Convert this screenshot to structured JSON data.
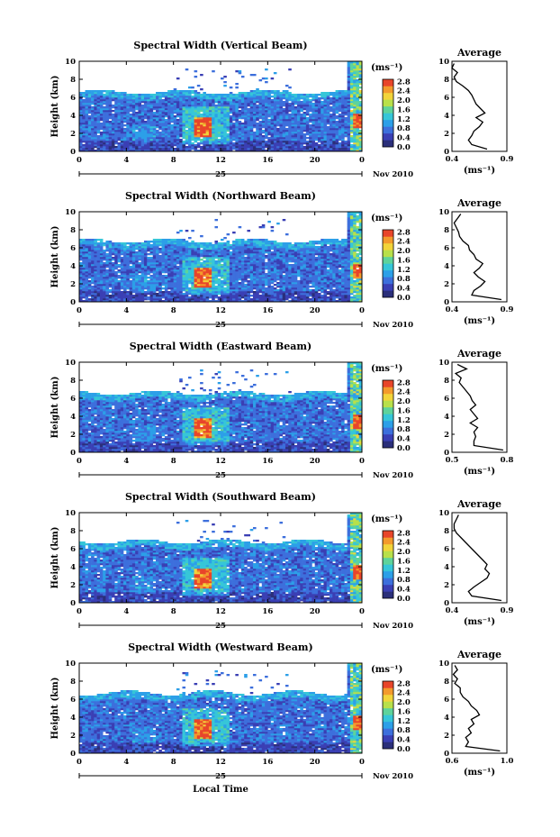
{
  "figure": {
    "xlabel": "Local Time",
    "day_label": "25",
    "month_label": "Nov 2010",
    "unit_label": "(ms⁻¹)",
    "avg_title": "Average",
    "avg_xlabel": "(ms⁻¹)"
  },
  "colorbar": {
    "ticks": [
      "0.0",
      "0.4",
      "0.8",
      "1.2",
      "1.6",
      "2.0",
      "2.4",
      "2.8"
    ],
    "colors": [
      "#2b2f7a",
      "#3a3fb4",
      "#3d6fdc",
      "#2c9fe8",
      "#36c6d8",
      "#5ed39b",
      "#b8e04a",
      "#f2d43a",
      "#f39a2c",
      "#e8452a"
    ]
  },
  "chart_data": [
    {
      "type": "heatmap",
      "title": "Spectral Width (Vertical Beam)",
      "xlabel": "Local Time",
      "ylabel": "Height (km)",
      "xlim": [
        0,
        24
      ],
      "ylim": [
        0,
        10
      ],
      "xticks": [
        "0",
        "4",
        "8",
        "12",
        "16",
        "20",
        "0"
      ],
      "yticks": [
        "0",
        "2",
        "4",
        "6",
        "8",
        "10"
      ],
      "colorbar_label": "(ms⁻¹)",
      "zlim": [
        0.0,
        2.8
      ],
      "top_height_km": 6.6,
      "average": {
        "title": "Average",
        "xlabel": "(ms⁻¹)",
        "xlim": [
          0.4,
          0.9
        ],
        "xticks": [
          "0.4",
          "0.9"
        ],
        "ylim": [
          0,
          10
        ],
        "yticks": [
          "0",
          "2",
          "4",
          "6",
          "8",
          "10"
        ],
        "height_km": [
          0,
          0.5,
          1,
          1.5,
          2,
          2.5,
          3,
          3.5,
          4,
          4.5,
          5,
          5.5,
          6,
          6.5,
          7,
          7.5,
          8,
          8.5,
          9,
          9.5
        ],
        "value": [
          0.72,
          0.58,
          0.55,
          0.58,
          0.6,
          0.65,
          0.68,
          0.62,
          0.7,
          0.66,
          0.62,
          0.6,
          0.58,
          0.55,
          0.5,
          0.44,
          0.42,
          0.45,
          0.4,
          0.42
        ]
      }
    },
    {
      "type": "heatmap",
      "title": "Spectral Width (Northward Beam)",
      "xlabel": "Local Time",
      "ylabel": "Height (km)",
      "xlim": [
        0,
        24
      ],
      "ylim": [
        0,
        10
      ],
      "xticks": [
        "0",
        "4",
        "8",
        "12",
        "16",
        "20",
        "0"
      ],
      "yticks": [
        "0",
        "2",
        "4",
        "6",
        "8",
        "10"
      ],
      "colorbar_label": "(ms⁻¹)",
      "zlim": [
        0.0,
        2.8
      ],
      "top_height_km": 6.8,
      "average": {
        "title": "Average",
        "xlabel": "(ms⁻¹)",
        "xlim": [
          0.4,
          0.9
        ],
        "xticks": [
          "0.4",
          "0.9"
        ],
        "ylim": [
          0,
          10
        ],
        "yticks": [
          "0",
          "2",
          "4",
          "6",
          "8",
          "10"
        ],
        "height_km": [
          0,
          0.5,
          1,
          1.5,
          2,
          2.5,
          3,
          3.5,
          4,
          4.5,
          5,
          5.5,
          6,
          6.5,
          7,
          7.5,
          8,
          8.5,
          9,
          9.5
        ],
        "value": [
          0.85,
          0.58,
          0.6,
          0.66,
          0.7,
          0.64,
          0.6,
          0.65,
          0.68,
          0.62,
          0.6,
          0.56,
          0.55,
          0.5,
          0.47,
          0.46,
          0.44,
          0.42,
          0.45,
          0.48
        ]
      }
    },
    {
      "type": "heatmap",
      "title": "Spectral Width (Eastward Beam)",
      "xlabel": "Local Time",
      "ylabel": "Height (km)",
      "xlim": [
        0,
        24
      ],
      "ylim": [
        0,
        10
      ],
      "xticks": [
        "0",
        "4",
        "8",
        "12",
        "16",
        "20",
        "0"
      ],
      "yticks": [
        "0",
        "2",
        "4",
        "6",
        "8",
        "10"
      ],
      "colorbar_label": "(ms⁻¹)",
      "zlim": [
        0.0,
        2.8
      ],
      "top_height_km": 6.6,
      "average": {
        "title": "Average",
        "xlabel": "(ms⁻¹)",
        "xlim": [
          0.5,
          0.8
        ],
        "xticks": [
          "0.5",
          "0.8"
        ],
        "ylim": [
          0,
          10
        ],
        "yticks": [
          "0",
          "2",
          "4",
          "6",
          "8",
          "10"
        ],
        "height_km": [
          0,
          0.5,
          1,
          1.5,
          2,
          2.5,
          3,
          3.5,
          4,
          4.5,
          5,
          5.5,
          6,
          6.5,
          7,
          7.5,
          8,
          8.5,
          9,
          9.5
        ],
        "value": [
          0.78,
          0.62,
          0.62,
          0.63,
          0.62,
          0.64,
          0.6,
          0.64,
          0.62,
          0.6,
          0.63,
          0.61,
          0.6,
          0.58,
          0.56,
          0.54,
          0.55,
          0.52,
          0.58,
          0.53
        ]
      }
    },
    {
      "type": "heatmap",
      "title": "Spectral Width (Southward Beam)",
      "xlabel": "Local Time",
      "ylabel": "Height (km)",
      "xlim": [
        0,
        24
      ],
      "ylim": [
        0,
        10
      ],
      "xticks": [
        "0",
        "4",
        "8",
        "12",
        "16",
        "20",
        "0"
      ],
      "yticks": [
        "0",
        "2",
        "4",
        "6",
        "8",
        "10"
      ],
      "colorbar_label": "(ms⁻¹)",
      "zlim": [
        0.0,
        2.8
      ],
      "top_height_km": 6.8,
      "average": {
        "title": "Average",
        "xlabel": "(ms⁻¹)",
        "xlim": [
          0.4,
          0.9
        ],
        "xticks": [
          "0.4",
          "0.9"
        ],
        "ylim": [
          0,
          10
        ],
        "yticks": [
          "0",
          "2",
          "4",
          "6",
          "8",
          "10"
        ],
        "height_km": [
          0,
          0.5,
          1,
          1.5,
          2,
          2.5,
          3,
          3.5,
          4,
          4.5,
          5,
          5.5,
          6,
          6.5,
          7,
          7.5,
          8,
          8.5,
          9,
          9.5
        ],
        "value": [
          0.85,
          0.58,
          0.55,
          0.6,
          0.66,
          0.72,
          0.74,
          0.7,
          0.72,
          0.68,
          0.64,
          0.6,
          0.56,
          0.52,
          0.48,
          0.44,
          0.42,
          0.42,
          0.44,
          0.46
        ]
      }
    },
    {
      "type": "heatmap",
      "title": "Spectral Width (Westward Beam)",
      "xlabel": "Local Time",
      "ylabel": "Height (km)",
      "xlim": [
        0,
        24
      ],
      "ylim": [
        0,
        10
      ],
      "xticks": [
        "0",
        "4",
        "8",
        "12",
        "16",
        "20",
        "0"
      ],
      "yticks": [
        "0",
        "2",
        "4",
        "6",
        "8",
        "10"
      ],
      "colorbar_label": "(ms⁻¹)",
      "zlim": [
        0.0,
        2.8
      ],
      "top_height_km": 6.7,
      "average": {
        "title": "Average",
        "xlabel": "(ms⁻¹)",
        "xlim": [
          0.6,
          1.0
        ],
        "xticks": [
          "0.6",
          "1.0"
        ],
        "ylim": [
          0,
          10
        ],
        "yticks": [
          "0",
          "2",
          "4",
          "6",
          "8",
          "10"
        ],
        "height_km": [
          0,
          0.5,
          1,
          1.5,
          2,
          2.5,
          3,
          3.5,
          4,
          4.5,
          5,
          5.5,
          6,
          6.5,
          7,
          7.5,
          8,
          8.5,
          9,
          9.5
        ],
        "value": [
          0.95,
          0.7,
          0.72,
          0.7,
          0.74,
          0.72,
          0.76,
          0.74,
          0.8,
          0.78,
          0.74,
          0.72,
          0.68,
          0.66,
          0.66,
          0.62,
          0.64,
          0.61,
          0.64,
          0.62
        ]
      }
    }
  ]
}
